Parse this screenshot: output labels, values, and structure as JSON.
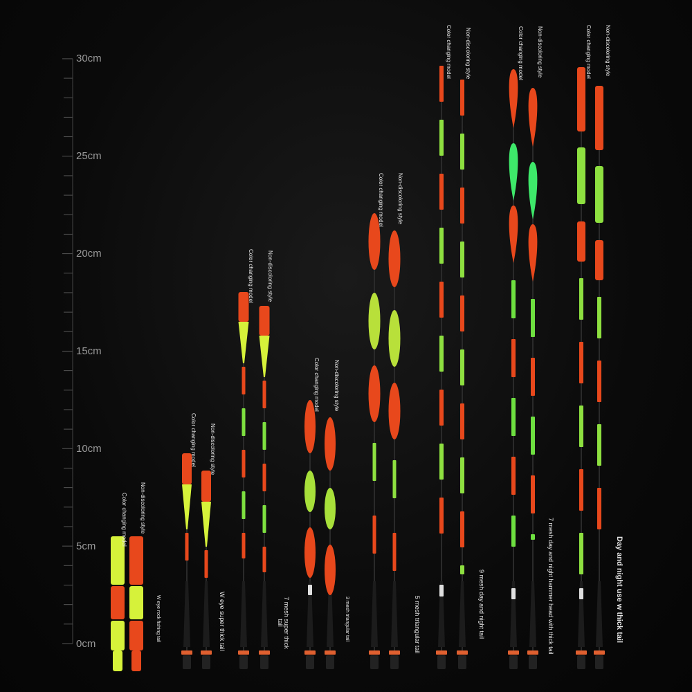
{
  "ruler": {
    "labels": [
      "30cm",
      "25cm",
      "20cm",
      "15cm",
      "10cm",
      "5cm",
      "0cm"
    ],
    "unit": "cm"
  },
  "colors": {
    "red": "#e8481c",
    "yellow": "#d6f23a",
    "green": "#3ee86a",
    "white": "#e0e0e0",
    "stem": "#2a2a2a",
    "ring": "#e06030"
  },
  "floats": [
    {
      "left_label": "Color changing model",
      "right_label": "Non-discoloring style",
      "tail_label": "W eye rock fishing tail"
    },
    {
      "left_label": "Color changing model",
      "right_label": "Non-discoloring style",
      "tail_label": "W eye super thick tail"
    },
    {
      "left_label": "Color changing model",
      "right_label": "Non-discoloring style",
      "tail_label": "7 mesh super thick tail"
    },
    {
      "left_label": "Color changing model",
      "right_label": "Non-discoloring style",
      "tail_label": "3 mesh triangular tail"
    },
    {
      "left_label": "Color changing model",
      "right_label": "Non-discoloring style",
      "tail_label": "5 mesh triangular tail"
    },
    {
      "left_label": "Color changing model",
      "right_label": "Non-discoloring style",
      "tail_label": "9 mesh day and night tail"
    },
    {
      "left_label": "Color changing model",
      "right_label": "Non-discoloring style",
      "tail_label": "7 mesh day and night hammer head with thick tail"
    },
    {
      "left_label": "Color changing model",
      "right_label": "Non-discoloring style",
      "tail_label": "Day and night use w thick tail"
    }
  ]
}
